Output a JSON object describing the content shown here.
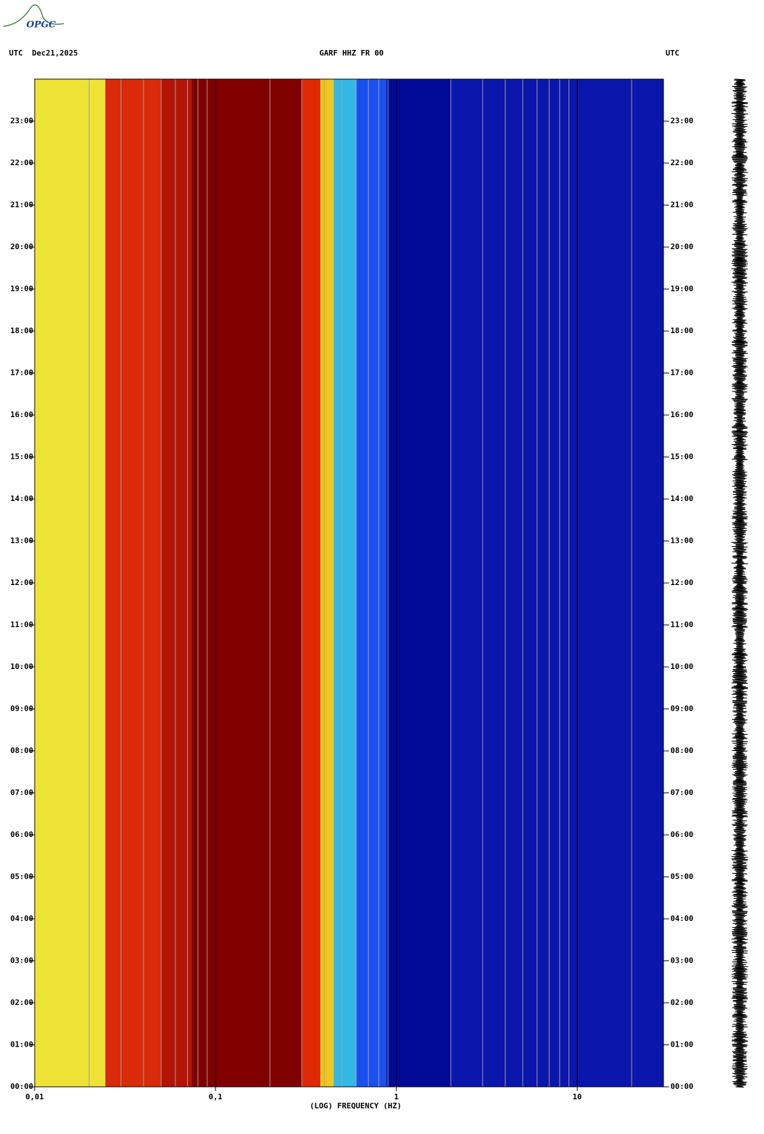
{
  "header": {
    "left": "UTC  Dec21,2025",
    "center": "GARF HHZ FR 00",
    "right": "UTC"
  },
  "logo": "OPGC",
  "chart_data": {
    "type": "spectrogram",
    "x_label": "(LOG) FREQUENCY (HZ)",
    "x_log": true,
    "xlim": [
      0.01,
      30
    ],
    "xticks": [
      {
        "value": 0.01,
        "label": "0,01"
      },
      {
        "value": 0.1,
        "label": "0,1"
      },
      1,
      10
    ],
    "x_minor_ticks": [
      0.02,
      0.03,
      0.04,
      0.05,
      0.06,
      0.07,
      0.08,
      0.09,
      0.2,
      0.3,
      0.4,
      0.5,
      0.6,
      0.7,
      0.8,
      0.9,
      2,
      3,
      4,
      5,
      6,
      7,
      8,
      9,
      20
    ],
    "ylim": [
      0,
      24
    ],
    "yticks": [
      {
        "value": 0,
        "label": "00:00"
      },
      {
        "value": 1,
        "label": "01:00"
      },
      {
        "value": 2,
        "label": "02:00"
      },
      {
        "value": 3,
        "label": "03:00"
      },
      {
        "value": 4,
        "label": "04:00"
      },
      {
        "value": 5,
        "label": "05:00"
      },
      {
        "value": 6,
        "label": "06:00"
      },
      {
        "value": 7,
        "label": "07:00"
      },
      {
        "value": 8,
        "label": "08:00"
      },
      {
        "value": 9,
        "label": "09:00"
      },
      {
        "value": 10,
        "label": "10:00"
      },
      {
        "value": 11,
        "label": "11:00"
      },
      {
        "value": 12,
        "label": "12:00"
      },
      {
        "value": 13,
        "label": "13:00"
      },
      {
        "value": 14,
        "label": "14:00"
      },
      {
        "value": 15,
        "label": "15:00"
      },
      {
        "value": 16,
        "label": "16:00"
      },
      {
        "value": 17,
        "label": "17:00"
      },
      {
        "value": 18,
        "label": "18:00"
      },
      {
        "value": 19,
        "label": "19:00"
      },
      {
        "value": 20,
        "label": "20:00"
      },
      {
        "value": 21,
        "label": "21:00"
      },
      {
        "value": 22,
        "label": "22:00"
      },
      {
        "value": 23,
        "label": "23:00"
      }
    ],
    "bands": [
      {
        "from": 0.01,
        "to": 0.0246,
        "color": "#eee235"
      },
      {
        "from": 0.0246,
        "to": 0.05,
        "color": "#d92a0a"
      },
      {
        "from": 0.05,
        "to": 0.0736,
        "color": "#b51405"
      },
      {
        "from": 0.0736,
        "to": 0.3,
        "color": "#800000"
      },
      {
        "from": 0.3,
        "to": 0.38,
        "color": "#e02a05"
      },
      {
        "from": 0.38,
        "to": 0.45,
        "color": "#f2c61c"
      },
      {
        "from": 0.45,
        "to": 0.6,
        "color": "#33b8e6"
      },
      {
        "from": 0.6,
        "to": 0.88,
        "color": "#1a50f0"
      },
      {
        "from": 0.88,
        "to": 2,
        "color": "#000a96"
      },
      {
        "from": 2,
        "to": 30,
        "color": "#0a16ac"
      }
    ]
  }
}
